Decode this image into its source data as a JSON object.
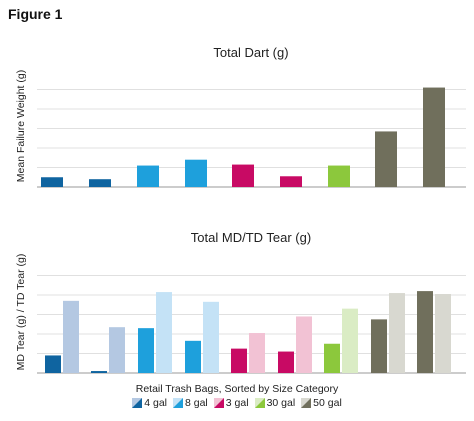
{
  "figure_label": "Figure 1",
  "legend": {
    "title": "Retail Trash Bags, Sorted by Size Category",
    "items": [
      {
        "label": "4 gal",
        "dark": "#0f64a0",
        "light": "#b4c8e2"
      },
      {
        "label": "8 gal",
        "dark": "#1ea0dc",
        "light": "#c4e2f6"
      },
      {
        "label": "3 gal",
        "dark": "#c80a64",
        "light": "#f2c2d4"
      },
      {
        "label": "30 gal",
        "dark": "#8cc83c",
        "light": "#daecc4"
      },
      {
        "label": "50 gal",
        "dark": "#706f5c",
        "light": "#d8d8d0"
      }
    ]
  },
  "chart_data": [
    {
      "type": "bar",
      "title": "Total Dart (g)",
      "xlabel": "",
      "ylabel": "Mean Failure Weight (g)",
      "ylim": [
        0,
        5
      ],
      "grid": true,
      "tick_labels_shown": false,
      "values": [
        0.5,
        0.4,
        1.1,
        1.4,
        1.15,
        0.55,
        1.1,
        2.85,
        5.1
      ],
      "bar_colors": [
        "#0f64a0",
        "#0f64a0",
        "#1ea0dc",
        "#1ea0dc",
        "#c80a64",
        "#c80a64",
        "#8cc83c",
        "#706f5c",
        "#706f5c"
      ]
    },
    {
      "type": "bar",
      "title": "Total MD/TD Tear (g)",
      "xlabel": "",
      "ylabel": "MD Tear (g) / TD Tear (g)",
      "ylim": [
        0,
        5
      ],
      "grid": true,
      "tick_labels_shown": false,
      "groups": [
        {
          "md": 0.9,
          "td": 3.7,
          "dark": "#0f64a0",
          "light": "#b4c8e2"
        },
        {
          "md": 0.1,
          "td": 2.35,
          "dark": "#0f64a0",
          "light": "#b4c8e2"
        },
        {
          "md": 2.3,
          "td": 4.15,
          "dark": "#1ea0dc",
          "light": "#c4e2f6"
        },
        {
          "md": 1.65,
          "td": 3.65,
          "dark": "#1ea0dc",
          "light": "#c4e2f6"
        },
        {
          "md": 1.25,
          "td": 2.05,
          "dark": "#c80a64",
          "light": "#f2c2d4"
        },
        {
          "md": 1.1,
          "td": 2.9,
          "dark": "#c80a64",
          "light": "#f2c2d4"
        },
        {
          "md": 1.5,
          "td": 3.3,
          "dark": "#8cc83c",
          "light": "#daecc4"
        },
        {
          "md": 2.75,
          "td": 4.1,
          "dark": "#706f5c",
          "light": "#d8d8d0"
        },
        {
          "md": 4.2,
          "td": 4.05,
          "dark": "#706f5c",
          "light": "#d8d8d0"
        }
      ]
    }
  ]
}
